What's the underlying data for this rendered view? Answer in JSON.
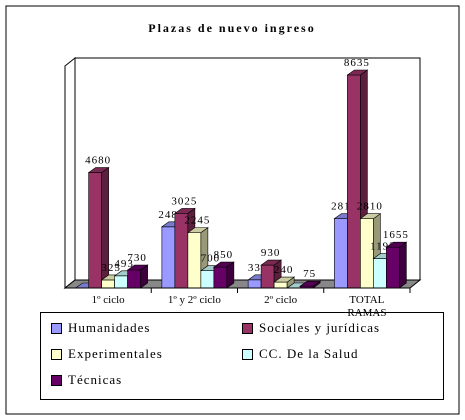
{
  "chart_data": {
    "type": "bar3d",
    "title": "Plazas de nuevo ingreso",
    "categories": [
      "1º ciclo",
      "1º y 2º ciclo",
      "2º ciclo",
      "TOTAL RAMAS"
    ],
    "series": [
      {
        "name": "Humanidades",
        "color": "#9999ff",
        "values": [
          0,
          2481,
          330,
          2811
        ]
      },
      {
        "name": "Sociales y jurídicas",
        "color": "#993366",
        "values": [
          4680,
          3025,
          930,
          8635
        ]
      },
      {
        "name": "Experimentales",
        "color": "#ffffcc",
        "values": [
          325,
          2245,
          240,
          2810
        ]
      },
      {
        "name": "CC. De la Salud",
        "color": "#ccffff",
        "values": [
          493,
          700,
          0,
          1193
        ]
      },
      {
        "name": "Técnicas",
        "color": "#660066",
        "values": [
          730,
          850,
          75,
          1655
        ]
      }
    ],
    "ylim": [
      0,
      9000
    ],
    "legend": "bottom"
  }
}
